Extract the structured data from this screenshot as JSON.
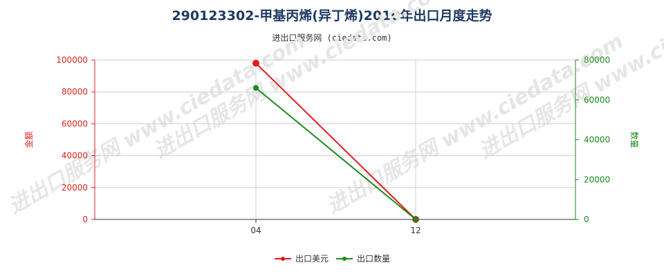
{
  "title": "290123302-甲基丙烯(异丁烯)2010年出口月度走势",
  "subtitle": "进出口服务网 (ciedata.com)",
  "watermark": "进出口服务网 www.ciedata.com",
  "colors": {
    "left_axis": "#e02020",
    "right_axis": "#1a8a1a",
    "series_usd": "#e31a1c",
    "series_qty": "#1b8a1b"
  },
  "chart_data": {
    "type": "line",
    "x": [
      "04",
      "12"
    ],
    "yleft": {
      "label": "金额",
      "ticks": [
        "0",
        "20000",
        "40000",
        "60000",
        "80000",
        "100000"
      ],
      "range": [
        0,
        100000
      ]
    },
    "yright": {
      "label": "数量",
      "ticks": [
        "0",
        "20000",
        "40000",
        "60000",
        "80000"
      ],
      "range": [
        0,
        80000
      ]
    },
    "grid": true,
    "legend_position": "bottom",
    "series": [
      {
        "name": "出口美元",
        "axis": "left",
        "values": [
          98000,
          0
        ]
      },
      {
        "name": "出口数量",
        "axis": "right",
        "values": [
          66000,
          0
        ]
      }
    ]
  }
}
